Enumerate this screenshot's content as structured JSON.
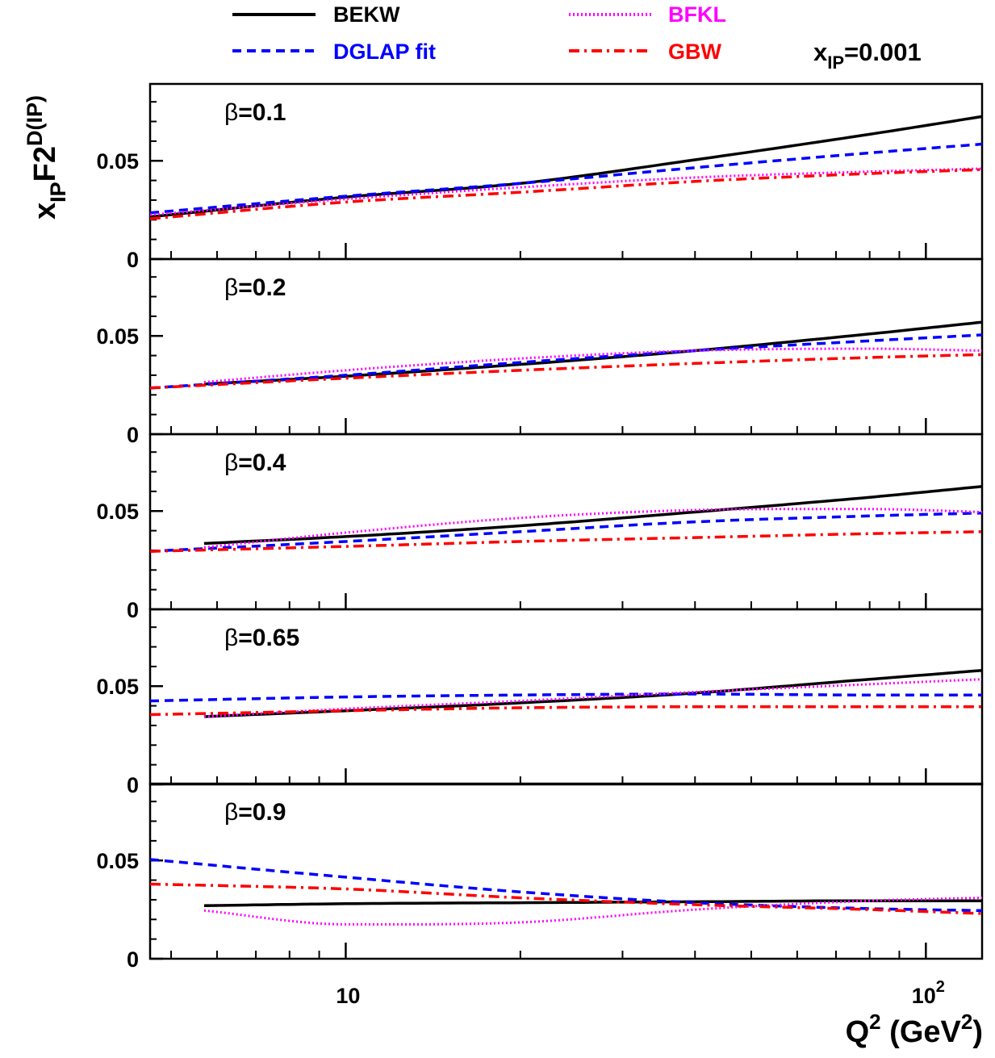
{
  "figure": {
    "ylabel": {
      "main": "x",
      "sub": "IP",
      "main2": "F2",
      "sup": "D(IP)"
    },
    "xlabel": {
      "q": "Q",
      "qsup": "2",
      "open": " (GeV",
      "unitsup": "2",
      "close": ")"
    },
    "xip": {
      "main": "x",
      "sub": "IP",
      "rest": "=0.001"
    },
    "beta_symbol": "β"
  },
  "legend": [
    {
      "label": "BEKW",
      "color": "#000000",
      "style": "solid"
    },
    {
      "label": "DGLAP fit",
      "color": "#0000ff",
      "style": "dashed"
    },
    {
      "label": "BFKL",
      "color": "#ff00ff",
      "style": "dotted"
    },
    {
      "label": "GBW",
      "color": "#ff0000",
      "style": "dashdot"
    }
  ],
  "chart_data": {
    "type": "line",
    "xscale": "log",
    "xlim": [
      4.6,
      125
    ],
    "ylim": [
      0,
      0.085
    ],
    "xticks": [
      {
        "value": 10,
        "base": "10",
        "exp": ""
      },
      {
        "value": 100,
        "base": "10",
        "exp": "2"
      }
    ],
    "yticks": [
      {
        "value": 0,
        "label": "0"
      },
      {
        "value": 0.05,
        "label": "0.05"
      }
    ],
    "xlabel": "Q^2 (GeV^2)",
    "ylabel": "x_IP F2^D(IP)",
    "annotation": "x_IP=0.001",
    "panels": [
      {
        "beta": "=0.1",
        "series": [
          {
            "name": "BEKW",
            "x": [
              4.6,
              10,
              20,
              40,
              80,
              125
            ],
            "y": [
              0.0215,
              0.0315,
              0.0385,
              0.0505,
              0.0635,
              0.0725
            ]
          },
          {
            "name": "DGLAP fit",
            "x": [
              4.6,
              10,
              20,
              40,
              80,
              125
            ],
            "y": [
              0.0235,
              0.032,
              0.0385,
              0.0465,
              0.054,
              0.0585
            ]
          },
          {
            "name": "BFKL",
            "x": [
              4.6,
              10,
              20,
              40,
              80,
              125
            ],
            "y": [
              0.0225,
              0.0305,
              0.0365,
              0.0415,
              0.0445,
              0.046
            ]
          },
          {
            "name": "GBW",
            "x": [
              4.6,
              10,
              20,
              40,
              80,
              125
            ],
            "y": [
              0.0205,
              0.029,
              0.034,
              0.0395,
              0.0435,
              0.0455
            ]
          }
        ]
      },
      {
        "beta": "=0.2",
        "series": [
          {
            "name": "BEKW",
            "x": [
              5.7,
              10,
              20,
              40,
              80,
              125
            ],
            "y": [
              0.0255,
              0.0295,
              0.0355,
              0.0425,
              0.051,
              0.057
            ]
          },
          {
            "name": "DGLAP fit",
            "x": [
              4.6,
              10,
              20,
              40,
              80,
              125
            ],
            "y": [
              0.0235,
              0.03,
              0.0365,
              0.0425,
              0.0475,
              0.0505
            ]
          },
          {
            "name": "BFKL",
            "x": [
              5.7,
              10,
              20,
              40,
              80,
              125
            ],
            "y": [
              0.0265,
              0.0325,
              0.0385,
              0.0425,
              0.0435,
              0.0425
            ]
          },
          {
            "name": "GBW",
            "x": [
              4.6,
              10,
              20,
              40,
              80,
              125
            ],
            "y": [
              0.0235,
              0.0285,
              0.0325,
              0.036,
              0.039,
              0.0405
            ]
          }
        ]
      },
      {
        "beta": "=0.4",
        "series": [
          {
            "name": "BEKW",
            "x": [
              5.7,
              10,
              20,
              40,
              80,
              125
            ],
            "y": [
              0.0335,
              0.037,
              0.0425,
              0.0495,
              0.057,
              0.0625
            ]
          },
          {
            "name": "DGLAP fit",
            "x": [
              4.6,
              10,
              20,
              40,
              80,
              125
            ],
            "y": [
              0.0295,
              0.0345,
              0.0395,
              0.0445,
              0.0475,
              0.049
            ]
          },
          {
            "name": "BFKL",
            "x": [
              5.7,
              10,
              20,
              40,
              80,
              125
            ],
            "y": [
              0.0315,
              0.039,
              0.0465,
              0.0505,
              0.051,
              0.0495
            ]
          },
          {
            "name": "GBW",
            "x": [
              4.6,
              10,
              20,
              40,
              80,
              125
            ],
            "y": [
              0.0295,
              0.032,
              0.0345,
              0.0365,
              0.0385,
              0.0395
            ]
          }
        ]
      },
      {
        "beta": "=0.65",
        "series": [
          {
            "name": "BEKW",
            "x": [
              5.7,
              10,
              20,
              40,
              80,
              125
            ],
            "y": [
              0.0345,
              0.0375,
              0.0415,
              0.0465,
              0.0535,
              0.058
            ]
          },
          {
            "name": "DGLAP fit",
            "x": [
              4.6,
              10,
              20,
              40,
              80,
              125
            ],
            "y": [
              0.0425,
              0.0445,
              0.0455,
              0.046,
              0.0455,
              0.0455
            ]
          },
          {
            "name": "BFKL",
            "x": [
              5.7,
              10,
              20,
              40,
              80,
              125
            ],
            "y": [
              0.0345,
              0.0385,
              0.0425,
              0.047,
              0.051,
              0.0535
            ]
          },
          {
            "name": "GBW",
            "x": [
              4.6,
              10,
              20,
              40,
              80,
              125
            ],
            "y": [
              0.0355,
              0.0375,
              0.039,
              0.0395,
              0.0395,
              0.0395
            ]
          }
        ]
      },
      {
        "beta": "=0.9",
        "series": [
          {
            "name": "BEKW",
            "x": [
              5.7,
              10,
              20,
              40,
              80,
              125
            ],
            "y": [
              0.027,
              0.028,
              0.0285,
              0.029,
              0.0295,
              0.0295
            ]
          },
          {
            "name": "DGLAP fit",
            "x": [
              4.6,
              10,
              20,
              40,
              80,
              125
            ],
            "y": [
              0.0505,
              0.0415,
              0.034,
              0.0285,
              0.0255,
              0.0245
            ]
          },
          {
            "name": "BFKL",
            "x": [
              5.7,
              10,
              20,
              40,
              80,
              125
            ],
            "y": [
              0.0245,
              0.0175,
              0.0185,
              0.025,
              0.0295,
              0.031
            ]
          },
          {
            "name": "GBW",
            "x": [
              4.6,
              10,
              20,
              40,
              80,
              125
            ],
            "y": [
              0.038,
              0.0355,
              0.031,
              0.0275,
              0.025,
              0.023
            ]
          }
        ]
      }
    ]
  }
}
